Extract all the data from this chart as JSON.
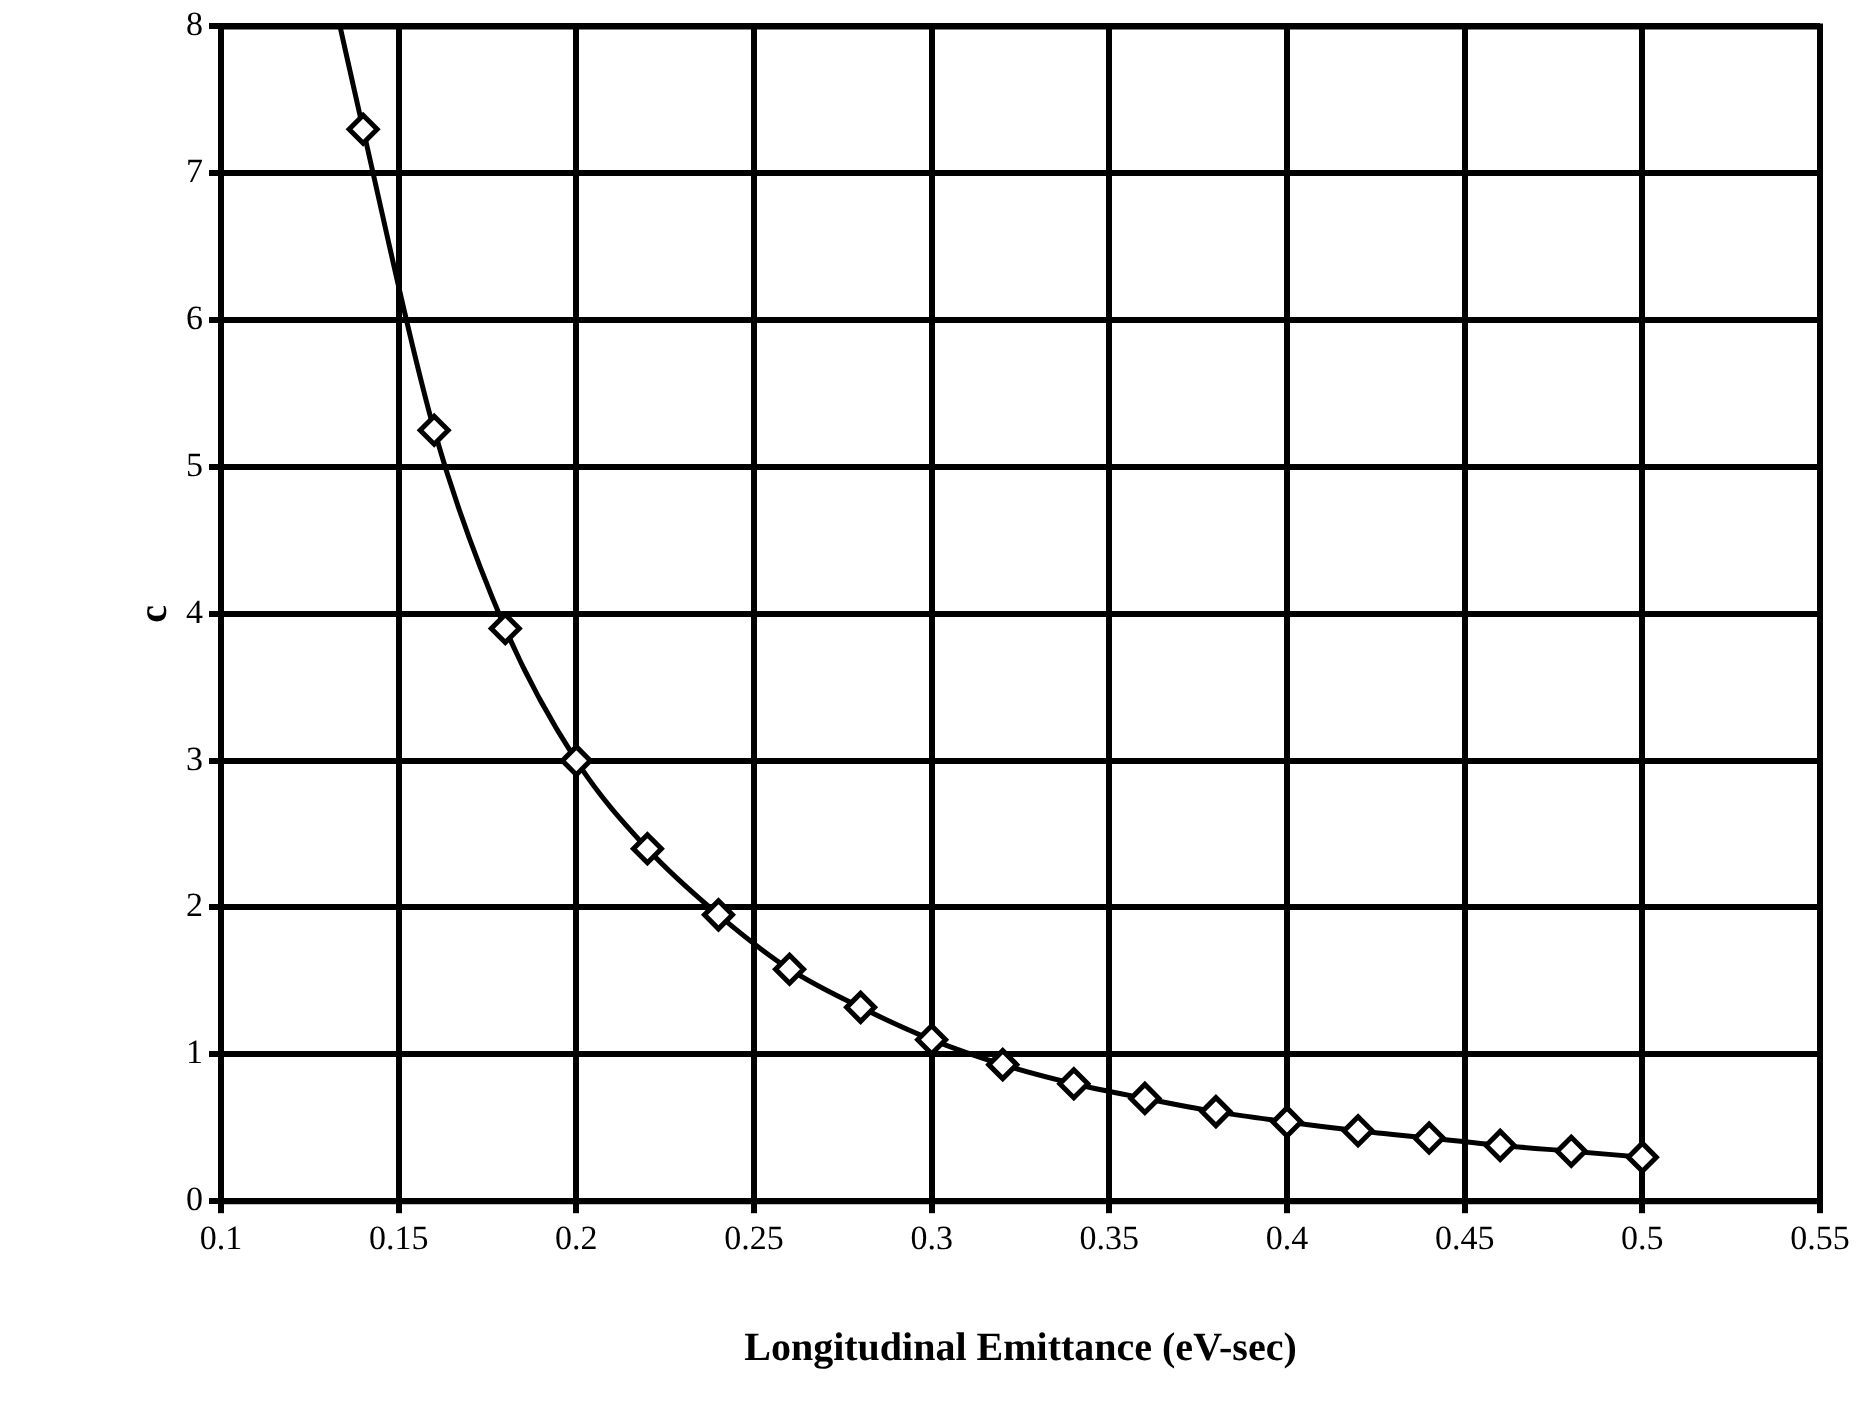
{
  "chart_data": {
    "type": "scatter",
    "xlabel": "Longitudinal Emittance (eV-sec)",
    "ylabel": "c",
    "xlim": [
      0.1,
      0.55
    ],
    "xticks": [
      0.1,
      0.15,
      0.2,
      0.25,
      0.3,
      0.35,
      0.4,
      0.45,
      0.5,
      0.55
    ],
    "ylim": [
      0,
      8
    ],
    "yticks": [
      0,
      1,
      2,
      3,
      4,
      5,
      6,
      7,
      8
    ],
    "grid": true,
    "legend": false,
    "series": [
      {
        "type": "line",
        "marker": "none",
        "line_style": "solid",
        "color": "#000000",
        "x": [
          0.1335,
          0.14,
          0.16,
          0.18,
          0.2,
          0.22,
          0.24,
          0.26,
          0.28,
          0.3,
          0.32,
          0.34,
          0.36,
          0.38,
          0.4,
          0.42,
          0.44,
          0.46,
          0.48,
          0.5
        ],
        "values": [
          8,
          7.3,
          5.25,
          3.9,
          3.0,
          2.4,
          1.95,
          1.58,
          1.32,
          1.1,
          0.93,
          0.8,
          0.7,
          0.61,
          0.54,
          0.48,
          0.43,
          0.38,
          0.34,
          0.3
        ]
      },
      {
        "marker": "diamond",
        "color": "#000000",
        "x": [
          0.14,
          0.16,
          0.18,
          0.2,
          0.22,
          0.24,
          0.26,
          0.28,
          0.3,
          0.32,
          0.34,
          0.36,
          0.38,
          0.4,
          0.42,
          0.44,
          0.46,
          0.48,
          0.5
        ],
        "values": [
          7.3,
          5.25,
          3.9,
          3.0,
          2.4,
          1.95,
          1.58,
          1.32,
          1.1,
          0.93,
          0.8,
          0.7,
          0.61,
          0.54,
          0.48,
          0.43,
          0.38,
          0.34,
          0.3
        ]
      }
    ]
  }
}
